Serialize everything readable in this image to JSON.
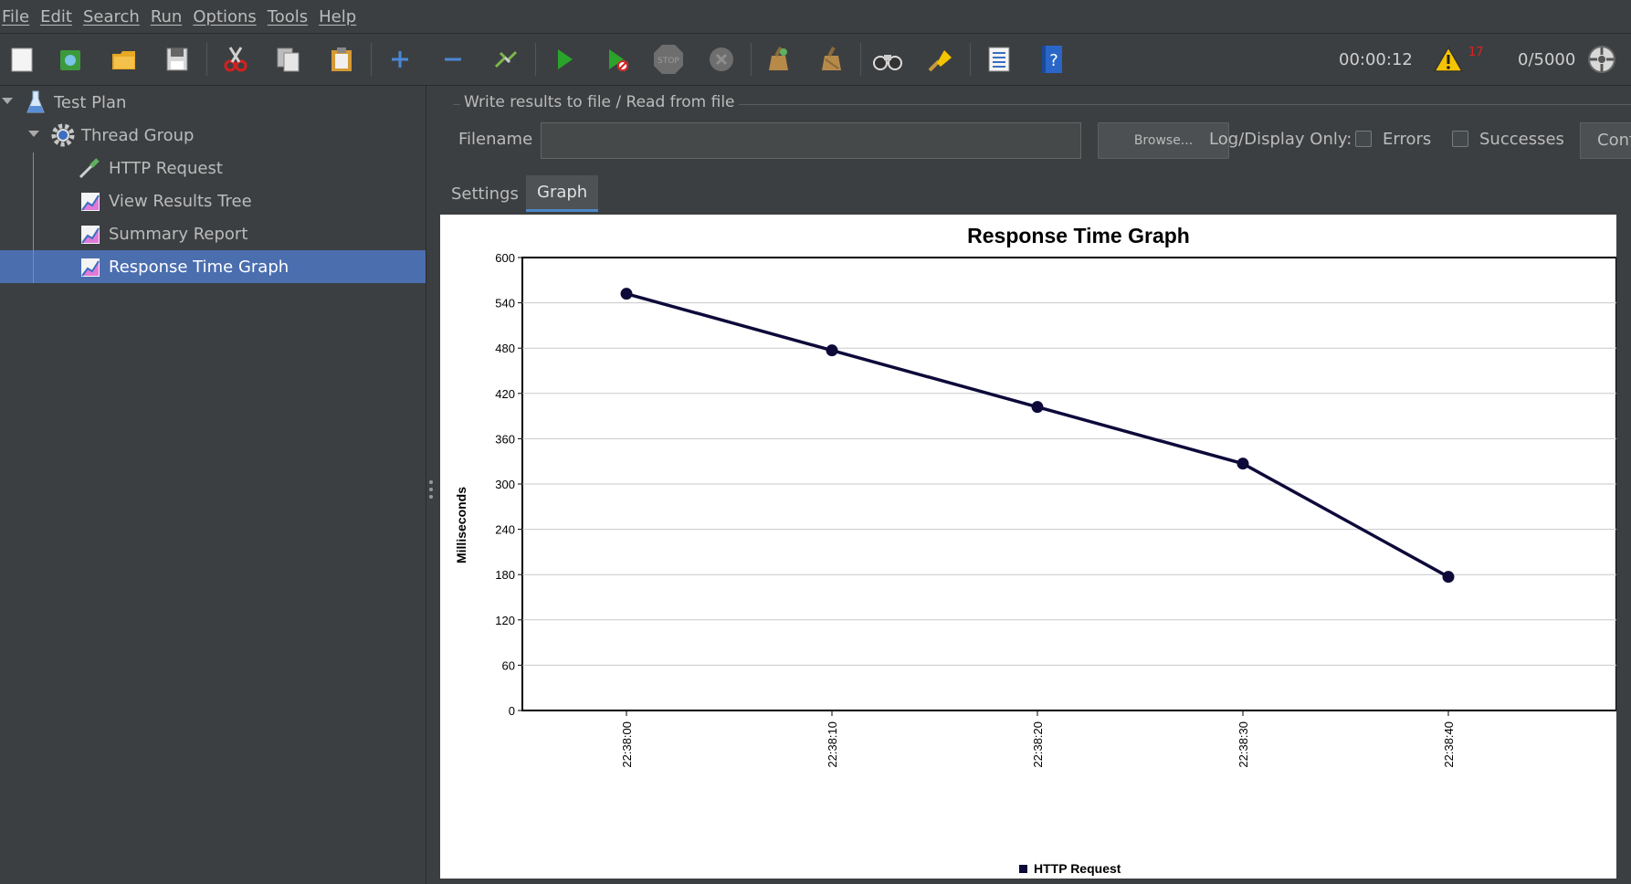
{
  "menubar": {
    "items": [
      {
        "label": "File"
      },
      {
        "label": "Edit"
      },
      {
        "label": "Search"
      },
      {
        "label": "Run"
      },
      {
        "label": "Options"
      },
      {
        "label": "Tools"
      },
      {
        "label": "Help"
      }
    ]
  },
  "toolbar": {
    "elapsed_time": "00:00:12",
    "warning_count": "17",
    "thread_count": "0/5000",
    "colors": {
      "start_green": "#2aa42a",
      "stop_gray": "#6e6e6e",
      "warning_yellow": "#f5c400",
      "warning_count_red": "#e02020"
    }
  },
  "tree": {
    "items": [
      {
        "label": "Test Plan",
        "icon": "flask-icon",
        "expanded": true
      },
      {
        "label": "Thread Group",
        "icon": "gear-icon",
        "expanded": true
      },
      {
        "label": "HTTP Request",
        "icon": "pipette-icon"
      },
      {
        "label": "View Results Tree",
        "icon": "listener-graph-icon"
      },
      {
        "label": "Summary Report",
        "icon": "listener-graph-icon"
      },
      {
        "label": "Response Time Graph",
        "icon": "listener-graph-icon",
        "selected": true
      }
    ]
  },
  "file_panel": {
    "group_title": "Write results to file / Read from file",
    "filename_label": "Filename",
    "filename_value": "",
    "browse_label": "Browse...",
    "log_display_label": "Log/Display Only:",
    "errors_label": "Errors",
    "errors_checked": false,
    "successes_label": "Successes",
    "successes_checked": false,
    "configure_label": "Configure"
  },
  "tabs": [
    {
      "label": "Settings",
      "active": false
    },
    {
      "label": "Graph",
      "active": true
    }
  ],
  "chart_data": {
    "type": "line",
    "title": "Response Time Graph",
    "ylabel": "Milliseconds",
    "xlabel": "",
    "ylim": [
      0,
      600
    ],
    "yticks": [
      "0",
      "60",
      "120",
      "180",
      "240",
      "300",
      "360",
      "420",
      "480",
      "540",
      "600"
    ],
    "categories": [
      "22:38:00",
      "22:38:10",
      "22:38:20",
      "22:38:30",
      "22:38:40"
    ],
    "series": [
      {
        "name": "HTTP Request",
        "values": [
          552,
          477,
          402,
          327,
          177
        ],
        "color": "#0d0a3a"
      }
    ],
    "grid": true,
    "legend": "bottom"
  }
}
